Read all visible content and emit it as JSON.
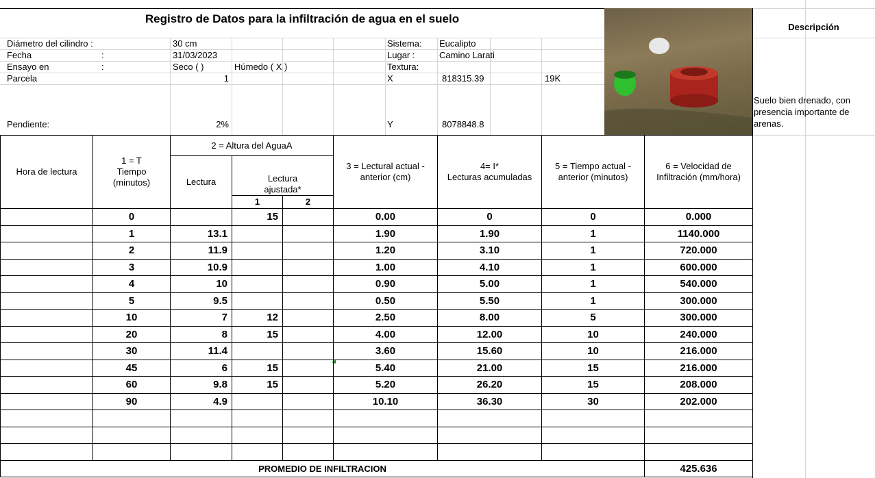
{
  "title": "Registro de Datos para la infiltración de agua en el suelo",
  "info": [
    {
      "label": "Diámetro del cilindro :",
      "value": "30 cm"
    },
    {
      "label": "Fecha",
      "sep": ":",
      "value": "31/03/2023"
    },
    {
      "label": "Ensayo en",
      "sep": ":",
      "value": "Seco (  )",
      "value2": "Húmedo ( X )"
    },
    {
      "label": "Parcela",
      "value": "1"
    },
    {
      "label": "Pendiente:",
      "value": "2%"
    }
  ],
  "site": [
    {
      "label": "Sistema:",
      "value": "Eucalipto"
    },
    {
      "label": "Lugar :",
      "value": "Camino Larati"
    },
    {
      "label": "Textura:"
    },
    {
      "label": "X",
      "value": "818315.39",
      "zone": "19K"
    },
    {
      "label": "Y",
      "value": "8078848.8"
    }
  ],
  "description": {
    "header": "Descripción",
    "text": "Suelo bien drenado, con presencia importante de arenas."
  },
  "headers": {
    "hora": "Hora de lectura",
    "tiempo": "1 = T\nTiempo\n(minutos)",
    "altura": "2 = Altura del AguaA",
    "lectura": "Lectura",
    "ajustada": "Lectura\najustada*",
    "aj1": "1",
    "aj2": "2",
    "diff": "3 = Lectural actual -\nanterior  (cm)",
    "cum": "4= I*\nLecturas acumuladas",
    "dt": "5 = Tiempo actual -\nanterior (minutos)",
    "vel": "6 = Velocidad de\nInfiltración (mm/hora)"
  },
  "rows": [
    {
      "t": "0",
      "aj1": "15",
      "diff": "0.00",
      "cum": "0",
      "dt": "0",
      "vel": "0.000"
    },
    {
      "t": "1",
      "lectura": "13.1",
      "diff": "1.90",
      "cum": "1.90",
      "dt": "1",
      "vel": "1140.000"
    },
    {
      "t": "2",
      "lectura": "11.9",
      "diff": "1.20",
      "cum": "3.10",
      "dt": "1",
      "vel": "720.000"
    },
    {
      "t": "3",
      "lectura": "10.9",
      "diff": "1.00",
      "cum": "4.10",
      "dt": "1",
      "vel": "600.000"
    },
    {
      "t": "4",
      "lectura": "10",
      "diff": "0.90",
      "cum": "5.00",
      "dt": "1",
      "vel": "540.000"
    },
    {
      "t": "5",
      "lectura": "9.5",
      "diff": "0.50",
      "cum": "5.50",
      "dt": "1",
      "vel": "300.000"
    },
    {
      "t": "10",
      "lectura": "7",
      "aj1": "12",
      "diff": "2.50",
      "cum": "8.00",
      "dt": "5",
      "vel": "300.000"
    },
    {
      "t": "20",
      "lectura": "8",
      "aj1": "15",
      "diff": "4.00",
      "cum": "12.00",
      "dt": "10",
      "vel": "240.000"
    },
    {
      "t": "30",
      "lectura": "11.4",
      "diff": "3.60",
      "cum": "15.60",
      "dt": "10",
      "vel": "216.000"
    },
    {
      "t": "45",
      "lectura": "6",
      "aj1": "15",
      "diff": "5.40",
      "cum": "21.00",
      "dt": "15",
      "vel": "216.000"
    },
    {
      "t": "60",
      "lectura": "9.8",
      "aj1": "15",
      "diff": "5.20",
      "cum": "26.20",
      "dt": "15",
      "vel": "208.000"
    },
    {
      "t": "90",
      "lectura": "4.9",
      "diff": "10.10",
      "cum": "36.30",
      "dt": "30",
      "vel": "202.000"
    }
  ],
  "total": {
    "label": "PROMEDIO DE INFILTRACION",
    "value": "425.636"
  }
}
